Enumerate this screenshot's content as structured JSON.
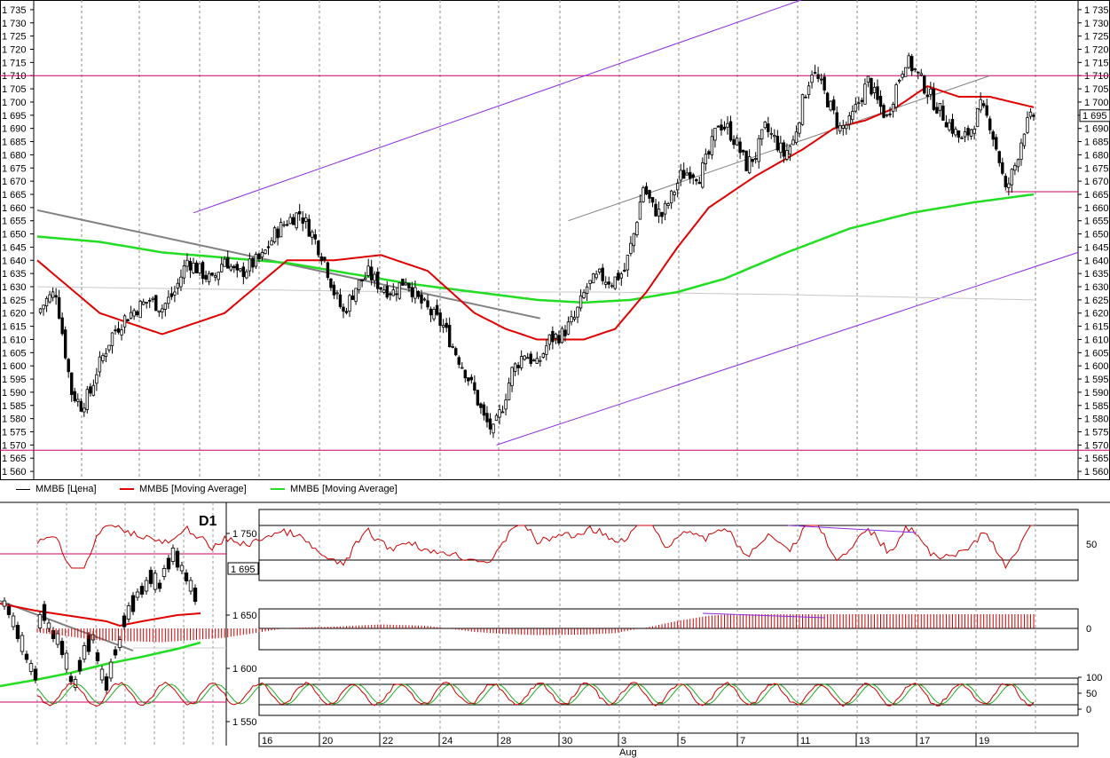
{
  "legend": [
    {
      "label": "ММВБ [Цена]",
      "color": "#000000"
    },
    {
      "label": "ММВБ [Moving Average]",
      "color": "#e00000"
    },
    {
      "label": "ММВБ [Moving Average]",
      "color": "#22dd22"
    }
  ],
  "inset": {
    "period_label": "D1",
    "last_price_label": "1 695",
    "y_ticks": [
      "1 750",
      "1 650",
      "1 600",
      "1 550"
    ]
  },
  "colors": {
    "price": "#000000",
    "ma_fast": "#e00000",
    "ma_slow": "#22dd22",
    "channel": "#8a2be2",
    "level": "#cc0066",
    "trend": "#808080",
    "osc": "#cc0000"
  },
  "chart_data": [
    {
      "type": "candlestick",
      "name": "main",
      "ylim": [
        1557,
        1738
      ],
      "y_ticks": [
        "1 735",
        "1 730",
        "1 725",
        "1 720",
        "1 715",
        "1 710",
        "1 705",
        "1 700",
        "1 695",
        "1 690",
        "1 685",
        "1 680",
        "1 675",
        "1 670",
        "1 665",
        "1 660",
        "1 655",
        "1 650",
        "1 645",
        "1 640",
        "1 635",
        "1 630",
        "1 625",
        "1 620",
        "1 615",
        "1 610",
        "1 605",
        "1 600",
        "1 595",
        "1 590",
        "1 585",
        "1 580",
        "1 575",
        "1 570",
        "1 565",
        "1 560"
      ],
      "last_price_label": "1 695",
      "x_labels": [
        "16",
        "20",
        "22",
        "24",
        "28",
        "30",
        "3",
        "5",
        "7",
        "11",
        "13",
        "17",
        "19"
      ],
      "x_sub_label": "Aug",
      "close_anchors": [
        [
          0,
          1620
        ],
        [
          3,
          1625
        ],
        [
          6,
          1628
        ],
        [
          9,
          1605
        ],
        [
          11,
          1590
        ],
        [
          14,
          1585
        ],
        [
          17,
          1590
        ],
        [
          19,
          1598
        ],
        [
          24,
          1612
        ],
        [
          28,
          1618
        ],
        [
          32,
          1622
        ],
        [
          36,
          1625
        ],
        [
          40,
          1622
        ],
        [
          44,
          1628
        ],
        [
          48,
          1640
        ],
        [
          52,
          1636
        ],
        [
          56,
          1632
        ],
        [
          60,
          1641
        ],
        [
          64,
          1634
        ],
        [
          68,
          1638
        ],
        [
          72,
          1641
        ],
        [
          76,
          1650
        ],
        [
          80,
          1655
        ],
        [
          84,
          1658
        ],
        [
          88,
          1650
        ],
        [
          92,
          1640
        ],
        [
          95,
          1628
        ],
        [
          98,
          1620
        ],
        [
          102,
          1630
        ],
        [
          106,
          1635
        ],
        [
          110,
          1630
        ],
        [
          114,
          1628
        ],
        [
          118,
          1633
        ],
        [
          122,
          1625
        ],
        [
          126,
          1620
        ],
        [
          130,
          1615
        ],
        [
          134,
          1605
        ],
        [
          137,
          1598
        ],
        [
          140,
          1590
        ],
        [
          143,
          1580
        ],
        [
          146,
          1575
        ],
        [
          149,
          1585
        ],
        [
          152,
          1598
        ],
        [
          156,
          1605
        ],
        [
          160,
          1600
        ],
        [
          164,
          1610
        ],
        [
          168,
          1612
        ],
        [
          172,
          1618
        ],
        [
          176,
          1630
        ],
        [
          180,
          1634
        ],
        [
          184,
          1632
        ],
        [
          188,
          1636
        ],
        [
          191,
          1650
        ],
        [
          194,
          1668
        ],
        [
          197,
          1660
        ],
        [
          200,
          1657
        ],
        [
          203,
          1664
        ],
        [
          206,
          1672
        ],
        [
          209,
          1674
        ],
        [
          212,
          1672
        ],
        [
          215,
          1680
        ],
        [
          218,
          1692
        ],
        [
          221,
          1690
        ],
        [
          224,
          1684
        ],
        [
          227,
          1676
        ],
        [
          230,
          1680
        ],
        [
          233,
          1690
        ],
        [
          236,
          1686
        ],
        [
          239,
          1680
        ],
        [
          242,
          1685
        ],
        [
          245,
          1700
        ],
        [
          248,
          1712
        ],
        [
          251,
          1706
        ],
        [
          254,
          1698
        ],
        [
          257,
          1690
        ],
        [
          260,
          1692
        ],
        [
          263,
          1700
        ],
        [
          266,
          1708
        ],
        [
          269,
          1700
        ],
        [
          272,
          1694
        ],
        [
          275,
          1706
        ],
        [
          278,
          1716
        ],
        [
          281,
          1712
        ],
        [
          284,
          1706
        ],
        [
          287,
          1700
        ],
        [
          290,
          1695
        ],
        [
          293,
          1690
        ],
        [
          296,
          1685
        ],
        [
          299,
          1690
        ],
        [
          302,
          1698
        ],
        [
          305,
          1692
        ],
        [
          308,
          1678
        ],
        [
          310,
          1666
        ],
        [
          313,
          1676
        ],
        [
          316,
          1690
        ],
        [
          319,
          1695
        ]
      ],
      "ma_fast": [
        [
          0,
          1640
        ],
        [
          20,
          1620
        ],
        [
          40,
          1612
        ],
        [
          60,
          1620
        ],
        [
          80,
          1640
        ],
        [
          95,
          1640
        ],
        [
          110,
          1642
        ],
        [
          125,
          1636
        ],
        [
          140,
          1620
        ],
        [
          150,
          1614
        ],
        [
          160,
          1610
        ],
        [
          175,
          1610
        ],
        [
          185,
          1614
        ],
        [
          195,
          1628
        ],
        [
          205,
          1645
        ],
        [
          215,
          1660
        ],
        [
          230,
          1672
        ],
        [
          245,
          1682
        ],
        [
          255,
          1690
        ],
        [
          265,
          1693
        ],
        [
          275,
          1698
        ],
        [
          285,
          1706
        ],
        [
          295,
          1702
        ],
        [
          305,
          1702
        ],
        [
          319,
          1698
        ]
      ],
      "ma_slow": [
        [
          0,
          1649
        ],
        [
          20,
          1647
        ],
        [
          40,
          1643
        ],
        [
          60,
          1641
        ],
        [
          80,
          1639
        ],
        [
          100,
          1635
        ],
        [
          120,
          1631
        ],
        [
          140,
          1628
        ],
        [
          160,
          1625
        ],
        [
          175,
          1624
        ],
        [
          190,
          1625
        ],
        [
          205,
          1628
        ],
        [
          220,
          1633
        ],
        [
          240,
          1643
        ],
        [
          260,
          1652
        ],
        [
          280,
          1658
        ],
        [
          300,
          1662
        ],
        [
          319,
          1665
        ]
      ],
      "ma_flat": [
        [
          0,
          1630
        ],
        [
          60,
          1629
        ],
        [
          120,
          1628
        ],
        [
          180,
          1628
        ],
        [
          240,
          1627
        ],
        [
          319,
          1625
        ]
      ],
      "horizontal_levels": [
        1710,
        1568
      ],
      "short_level": {
        "x0": 310,
        "x1": 319,
        "y": 1666
      },
      "channel_upper": [
        [
          50,
          1658
        ],
        [
          267,
          1748
        ]
      ],
      "channel_lower": [
        [
          147,
          1570
        ],
        [
          319,
          1643
        ]
      ],
      "trend_line": [
        [
          0,
          1659
        ],
        [
          161,
          1618
        ]
      ],
      "support_line": [
        [
          170,
          1655
        ],
        [
          305,
          1710
        ]
      ]
    },
    {
      "type": "line",
      "name": "oscillator",
      "ylim": [
        0,
        100
      ],
      "y_ticks": [
        "50"
      ],
      "levels": [
        70,
        30
      ]
    },
    {
      "type": "bar",
      "name": "macd-histogram",
      "y_ticks": [
        "0"
      ]
    },
    {
      "type": "line",
      "name": "stochastic",
      "ylim": [
        0,
        100
      ],
      "y_ticks": [
        "100",
        "50",
        "0"
      ],
      "levels": [
        80,
        20
      ]
    }
  ]
}
